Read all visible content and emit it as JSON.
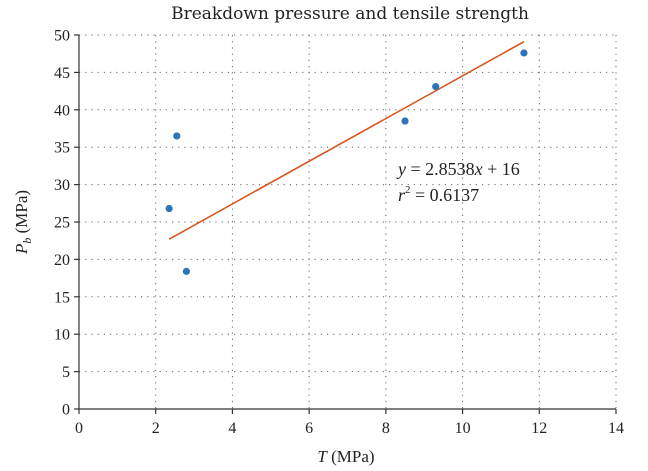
{
  "chart_data": {
    "type": "scatter",
    "title": "Breakdown pressure and tensile strength",
    "xlabel": {
      "var": "T",
      "unit": " (MPa)"
    },
    "ylabel": {
      "var": "P",
      "sub": "b",
      "unit": " (MPa)"
    },
    "xlim": [
      0,
      14
    ],
    "ylim": [
      0,
      50
    ],
    "xticks": [
      0,
      2,
      4,
      6,
      8,
      10,
      12,
      14
    ],
    "yticks": [
      0,
      5,
      10,
      15,
      20,
      25,
      30,
      35,
      40,
      45,
      50
    ],
    "grid": true,
    "series": [
      {
        "points": [
          {
            "x": 2.35,
            "y": 26.8
          },
          {
            "x": 2.55,
            "y": 36.5
          },
          {
            "x": 2.8,
            "y": 18.4
          },
          {
            "x": 8.5,
            "y": 38.5
          },
          {
            "x": 9.3,
            "y": 43.1
          },
          {
            "x": 11.6,
            "y": 47.6
          }
        ],
        "color": "#2e75b6"
      }
    ],
    "trendline": {
      "slope": 2.8538,
      "intercept": 16,
      "x_range": [
        2.35,
        11.6
      ],
      "color": "#d9531e",
      "equation": {
        "y": "y",
        "rhs_a": " = 2.8538",
        "x": "x",
        "rhs_b": " + 16"
      },
      "r2": {
        "r": "r",
        "sup": "2",
        "rhs": " = 0.6137"
      }
    }
  }
}
